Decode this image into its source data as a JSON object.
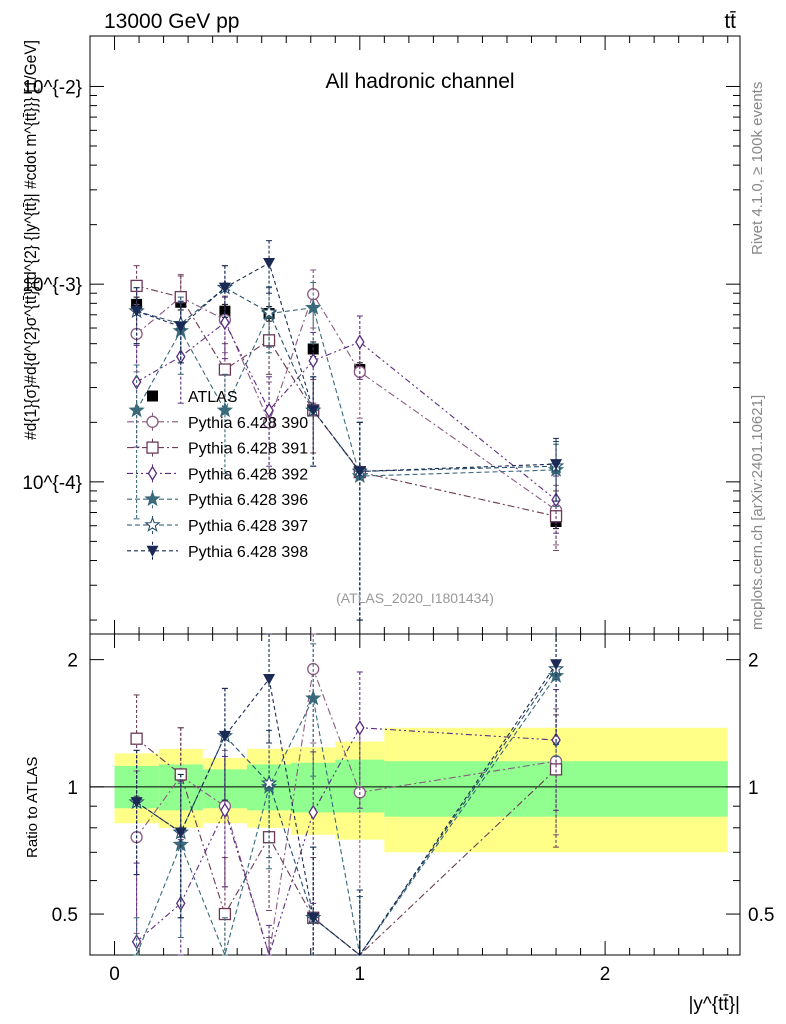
{
  "header": {
    "left": "13000 GeV pp",
    "right": "tt̄",
    "side_top": "Rivet 4.1.0, ≥ 100k events",
    "side_bottom": "mcplots.cern.ch [arXiv:2401.10621]"
  },
  "chart_data": {
    "type": "scatter",
    "title": "All hadronic channel",
    "analysis": "(ATLAS_2020_I1801434)",
    "xlabel": "|y^{tt̄}|",
    "ylabel": "#d{1}{σ}#d{d^{2}σ^{tt̄}}{d^{2} {|y^{tt̄}| #cdot m^{tt̄}}} [1/GeV]",
    "ratio_ylabel": "Ratio to ATLAS",
    "xlim": [
      -0.1,
      2.55
    ],
    "ylim": [
      1.7e-05,
      0.018
    ],
    "ratio_ylim": [
      0.4,
      2.3
    ],
    "x_ticks": [
      "0",
      "1",
      "2"
    ],
    "y_ticks": [
      "10^{-4}",
      "10^{-3}",
      "10^{-2}"
    ],
    "ratio_ticks": [
      "0.5",
      "1",
      "2"
    ],
    "bands": [
      {
        "x0": 0.0,
        "x1": 0.18,
        "g": [
          0.89,
          1.12
        ],
        "y": [
          0.82,
          1.2
        ]
      },
      {
        "x0": 0.18,
        "x1": 0.36,
        "g": [
          0.88,
          1.13
        ],
        "y": [
          0.8,
          1.23
        ]
      },
      {
        "x0": 0.36,
        "x1": 0.54,
        "g": [
          0.89,
          1.1
        ],
        "y": [
          0.82,
          1.17
        ]
      },
      {
        "x0": 0.54,
        "x1": 0.72,
        "g": [
          0.88,
          1.13
        ],
        "y": [
          0.8,
          1.23
        ]
      },
      {
        "x0": 0.72,
        "x1": 0.9,
        "g": [
          0.87,
          1.14
        ],
        "y": [
          0.77,
          1.24
        ]
      },
      {
        "x0": 0.9,
        "x1": 1.1,
        "g": [
          0.87,
          1.16
        ],
        "y": [
          0.75,
          1.28
        ]
      },
      {
        "x0": 1.1,
        "x1": 2.5,
        "g": [
          0.85,
          1.15
        ],
        "y": [
          0.7,
          1.38
        ]
      }
    ],
    "series": [
      {
        "name": "ATLAS",
        "color": "#000000",
        "marker": "square-filled",
        "dash": "",
        "x": [
          0.09,
          0.27,
          0.45,
          0.63,
          0.81,
          1.0,
          1.8
        ],
        "values": [
          0.00079,
          0.00081,
          0.00073,
          0.00071,
          0.00047,
          0.00037,
          6.3e-05
        ],
        "err_lo": [
          0.00072,
          0.00074,
          0.00067,
          0.00065,
          0.00043,
          0.00034,
          5.8e-05
        ],
        "err_hi": [
          0.00086,
          0.00088,
          0.00079,
          0.00077,
          0.00051,
          0.0004,
          6.9e-05
        ],
        "ratio": [],
        "ratio_lo": [],
        "ratio_hi": []
      },
      {
        "name": "Pythia 6.428 390",
        "color": "#8a5a80",
        "marker": "circle-open",
        "dash": "7,3,2,3",
        "x": [
          0.09,
          0.27,
          0.45,
          0.63,
          0.81,
          1.0,
          1.8
        ],
        "values": [
          0.00056,
          0.00086,
          0.00066,
          0.0002,
          0.00089,
          0.00036,
          7.2e-05
        ],
        "err_lo": [
          0.00036,
          0.0006,
          0.00045,
          0.00011,
          0.0006,
          0.00021,
          4.8e-05
        ],
        "err_hi": [
          0.00079,
          0.00112,
          0.00087,
          0.00032,
          0.00118,
          0.00051,
          9.6e-05
        ],
        "ratio": [
          0.76,
          1.06,
          0.9,
          0.28,
          1.9,
          0.97,
          1.15
        ],
        "ratio_lo": [
          0.45,
          0.74,
          0.58,
          0.14,
          1.27,
          0.57,
          0.77
        ],
        "ratio_hi": [
          1.09,
          1.38,
          1.22,
          0.44,
          2.5,
          1.4,
          1.53
        ]
      },
      {
        "name": "Pythia 6.428 391",
        "color": "#6b3a55",
        "marker": "square-open",
        "dash": "7,3,2,3",
        "x": [
          0.09,
          0.27,
          0.45,
          0.63,
          0.81,
          1.0,
          1.8
        ],
        "values": [
          0.00098,
          0.00086,
          0.00037,
          0.00052,
          0.00023,
          0.000112,
          6.7e-05
        ],
        "err_lo": [
          0.00073,
          0.00062,
          0.00024,
          0.00035,
          0.00014,
          2e-05,
          4.5e-05
        ],
        "err_hi": [
          0.00124,
          0.0011,
          0.0005,
          0.00069,
          0.00033,
          0.0002,
          9e-05
        ],
        "ratio": [
          1.3,
          1.07,
          0.5,
          0.76,
          0.49,
          0.3,
          1.1
        ],
        "ratio_lo": [
          0.95,
          0.76,
          0.32,
          0.51,
          0.3,
          0.05,
          0.72
        ],
        "ratio_hi": [
          1.65,
          1.38,
          0.68,
          1.01,
          0.68,
          0.55,
          1.48
        ]
      },
      {
        "name": "Pythia 6.428 392",
        "color": "#5a2d80",
        "marker": "diamond-open",
        "dash": "6,3,2,3,2,3",
        "x": [
          0.09,
          0.27,
          0.45,
          0.63,
          0.81,
          1.0,
          1.8
        ],
        "values": [
          0.00032,
          0.00043,
          0.00064,
          0.00023,
          0.00041,
          0.00051,
          8.1e-05
        ],
        "err_lo": [
          0.00015,
          0.00025,
          0.00042,
          0.00012,
          0.00025,
          0.00033,
          5.5e-05
        ],
        "err_hi": [
          0.00049,
          0.00061,
          0.00086,
          0.00034,
          0.00057,
          0.00069,
          0.000107
        ],
        "ratio": [
          0.43,
          0.53,
          0.88,
          0.32,
          0.87,
          1.38,
          1.29
        ],
        "ratio_lo": [
          0.2,
          0.31,
          0.58,
          0.17,
          0.53,
          0.89,
          0.88
        ],
        "ratio_hi": [
          0.66,
          0.75,
          1.18,
          0.47,
          1.21,
          1.87,
          1.7
        ]
      },
      {
        "name": "Pythia 6.428 396",
        "color": "#3a6a7a",
        "marker": "star-filled",
        "dash": "5,3",
        "x": [
          0.09,
          0.27,
          0.45,
          0.63,
          0.81,
          1.0,
          1.8
        ],
        "values": [
          0.00023,
          0.00058,
          0.00023,
          0.00071,
          0.00076,
          0.000107,
          0.000115
        ],
        "err_lo": [
          6.5e-05,
          0.00035,
          0.00011,
          0.00045,
          0.0005,
          2e-05,
          7.5e-05
        ],
        "err_hi": [
          0.00039,
          0.00081,
          0.00035,
          0.00097,
          0.00102,
          0.0002,
          0.000155
        ],
        "ratio": [
          0.29,
          0.73,
          0.32,
          1.0,
          1.62,
          0.29,
          1.83
        ],
        "ratio_lo": [
          0.09,
          0.44,
          0.15,
          0.64,
          1.06,
          0.05,
          1.18
        ],
        "ratio_hi": [
          0.49,
          1.02,
          0.49,
          1.36,
          2.18,
          0.55,
          2.48
        ]
      },
      {
        "name": "Pythia 6.428 397",
        "color": "#28506a",
        "marker": "star-open",
        "dash": "5,3",
        "x": [
          0.09,
          0.27,
          0.45,
          0.63,
          0.81,
          1.0,
          1.8
        ],
        "values": [
          0.00073,
          0.00063,
          0.00096,
          0.00072,
          0.00023,
          0.000113,
          0.00012
        ],
        "err_lo": [
          0.0005,
          0.0004,
          0.00068,
          0.00048,
          0.00012,
          2e-05,
          8e-05
        ],
        "err_hi": [
          0.00096,
          0.00086,
          0.00124,
          0.00096,
          0.00034,
          0.0002,
          0.00016
        ],
        "ratio": [
          0.92,
          0.78,
          1.32,
          1.02,
          0.49,
          0.31,
          1.9
        ],
        "ratio_lo": [
          0.62,
          0.49,
          0.93,
          0.68,
          0.26,
          0.05,
          1.26
        ],
        "ratio_hi": [
          1.22,
          1.07,
          1.71,
          1.36,
          0.72,
          0.57,
          2.54
        ]
      },
      {
        "name": "Pythia 6.428 398",
        "color": "#1a2a55",
        "marker": "triangle-down-filled",
        "dash": "4,3",
        "x": [
          0.09,
          0.27,
          0.45,
          0.63,
          0.81,
          1.0,
          1.8
        ],
        "values": [
          0.00073,
          0.00061,
          0.00096,
          0.00128,
          0.00023,
          0.000113,
          0.000123
        ],
        "err_lo": [
          0.0005,
          0.0004,
          0.00068,
          0.0009,
          0.00012,
          2e-05,
          8e-05
        ],
        "err_hi": [
          0.00096,
          0.00082,
          0.00124,
          0.00166,
          0.00034,
          0.0002,
          0.000166
        ],
        "ratio": [
          0.92,
          0.78,
          1.32,
          1.8,
          0.49,
          0.31,
          1.95
        ],
        "ratio_lo": [
          0.62,
          0.49,
          0.93,
          1.27,
          0.26,
          0.05,
          1.27
        ],
        "ratio_hi": [
          1.22,
          1.07,
          1.71,
          2.33,
          0.72,
          0.57,
          2.63
        ]
      }
    ]
  }
}
